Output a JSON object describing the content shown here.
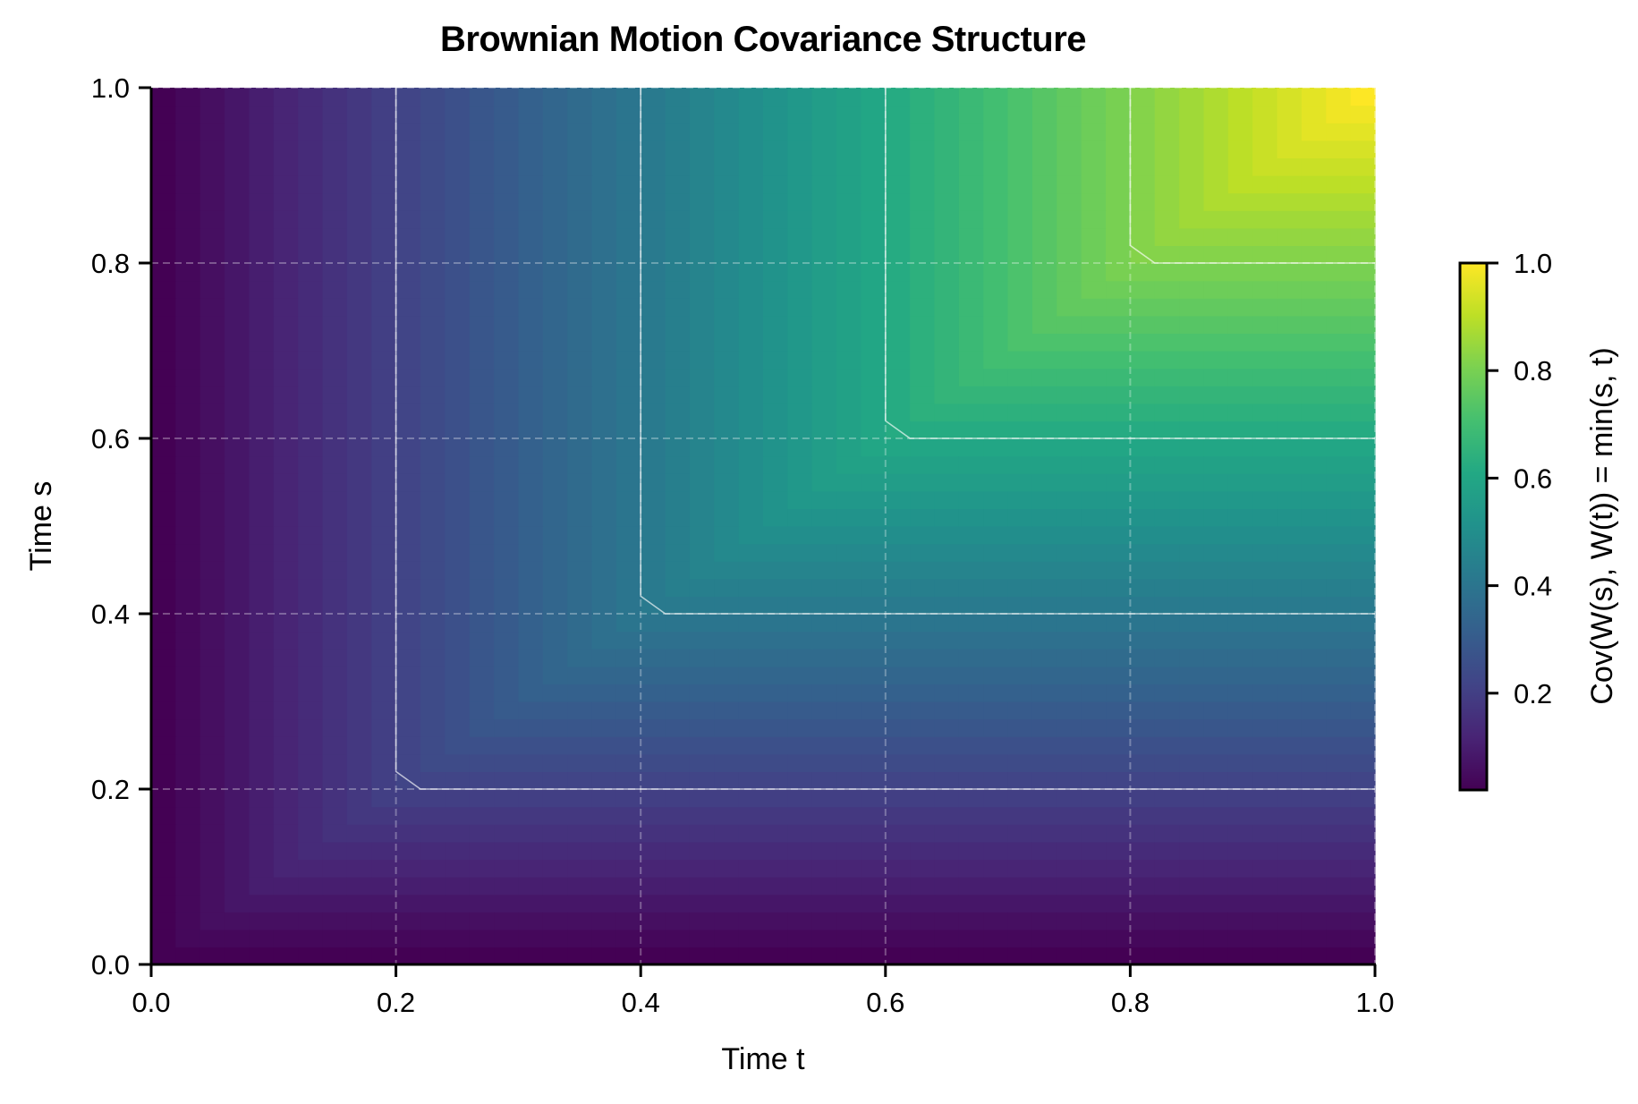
{
  "chart_data": {
    "type": "heatmap",
    "title": "Brownian Motion Covariance Structure",
    "xlabel": "Time t",
    "ylabel": "Time s",
    "colorbar_label": "Cov(W(s), W(t)) = min(s, t)",
    "colormap": "viridis",
    "formula": "min(s, t)",
    "grid_size": 50,
    "x_range": [
      0.0,
      1.0
    ],
    "y_range": [
      0.0,
      1.0
    ],
    "value_range": [
      0.02,
      1.0
    ],
    "x_ticks": [
      "0.0",
      "0.2",
      "0.4",
      "0.6",
      "0.8",
      "1.0"
    ],
    "y_ticks": [
      "0.0",
      "0.2",
      "0.4",
      "0.6",
      "0.8",
      "1.0"
    ],
    "colorbar_ticks": [
      "0.2",
      "0.4",
      "0.6",
      "0.8",
      "1.0"
    ],
    "contour_levels": [
      0.2,
      0.4,
      0.6,
      0.8
    ],
    "grid": true,
    "grid_style": "dashed",
    "legend": "colorbar-right"
  },
  "colors": {
    "contour": "#ffffff",
    "grid": "#ffffff",
    "axis": "#000000",
    "viridis_stops": [
      "#440154",
      "#482475",
      "#414487",
      "#355f8d",
      "#2a788e",
      "#21918c",
      "#22a884",
      "#44bf70",
      "#7ad151",
      "#bddf26",
      "#fde725"
    ]
  }
}
